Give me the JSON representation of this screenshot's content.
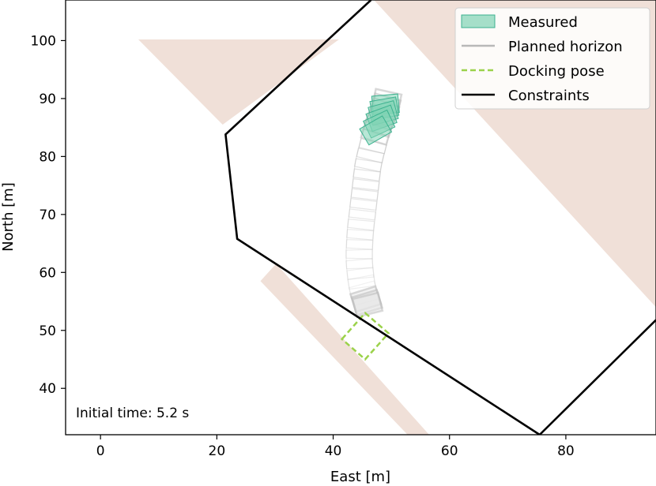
{
  "chart_data": {
    "type": "scatter",
    "xlabel": "East [m]",
    "ylabel": "North [m]",
    "xlim": [
      -6,
      95.5
    ],
    "ylim": [
      32,
      107
    ],
    "xticks": [
      0,
      20,
      40,
      60,
      80
    ],
    "yticks": [
      40,
      50,
      60,
      70,
      80,
      90,
      100
    ],
    "grid": false,
    "legend_position": "top-right",
    "annotation": "Initial time: 5.2 s",
    "colors": {
      "obstacle": "#f0e0d8",
      "constraint": "#000000",
      "measured_fill": "#7fd3b5",
      "measured_edge": "#3cb28f",
      "planned": "#b8b8b8",
      "docking": "#9bd24a"
    },
    "obstacles": [
      {
        "name": "quay-west",
        "points": [
          [
            6.5,
            100.2
          ],
          [
            41,
            100.2
          ],
          [
            21,
            85.5
          ]
        ]
      },
      {
        "name": "land-east",
        "points": [
          [
            47,
            107
          ],
          [
            95.5,
            107
          ],
          [
            95.5,
            54
          ]
        ]
      },
      {
        "name": "pier",
        "points": [
          [
            27.5,
            58.5
          ],
          [
            30.2,
            61.5
          ],
          [
            56.5,
            32
          ],
          [
            52.8,
            32
          ]
        ]
      }
    ],
    "constraints": [
      [
        46.5,
        107
      ],
      [
        21.5,
        83.8
      ],
      [
        23.5,
        65.8
      ],
      [
        75.5,
        32
      ],
      [
        95.5,
        51.8
      ]
    ],
    "docking_pose": {
      "corners": [
        [
          41.5,
          48.5
        ],
        [
          45.5,
          53.0
        ],
        [
          49.5,
          49.5
        ],
        [
          45.5,
          45.0
        ]
      ]
    },
    "measured": [
      {
        "x": 49.0,
        "y": 89.0,
        "heading": 5
      },
      {
        "x": 48.8,
        "y": 88.3,
        "heading": 10
      },
      {
        "x": 48.6,
        "y": 87.5,
        "heading": 15
      },
      {
        "x": 48.3,
        "y": 86.6,
        "heading": 20
      },
      {
        "x": 47.9,
        "y": 85.6,
        "heading": 25
      },
      {
        "x": 47.3,
        "y": 84.5,
        "heading": 30
      }
    ],
    "planned_horizon": [
      {
        "x": 49.2,
        "y": 89.6
      },
      {
        "x": 49.0,
        "y": 88.7
      },
      {
        "x": 48.7,
        "y": 87.8
      },
      {
        "x": 48.3,
        "y": 86.8
      },
      {
        "x": 47.9,
        "y": 85.6
      },
      {
        "x": 47.4,
        "y": 84.2
      },
      {
        "x": 47.0,
        "y": 82.6
      },
      {
        "x": 46.6,
        "y": 81.0
      },
      {
        "x": 46.2,
        "y": 79.4
      },
      {
        "x": 45.9,
        "y": 77.7
      },
      {
        "x": 45.7,
        "y": 76.0
      },
      {
        "x": 45.5,
        "y": 74.3
      },
      {
        "x": 45.3,
        "y": 72.6
      },
      {
        "x": 45.1,
        "y": 70.9
      },
      {
        "x": 44.9,
        "y": 69.1
      },
      {
        "x": 44.7,
        "y": 67.4
      },
      {
        "x": 44.6,
        "y": 65.7
      },
      {
        "x": 44.5,
        "y": 64.0
      },
      {
        "x": 44.5,
        "y": 62.3
      },
      {
        "x": 44.6,
        "y": 60.6
      },
      {
        "x": 44.8,
        "y": 59.0
      },
      {
        "x": 45.0,
        "y": 57.6
      },
      {
        "x": 45.3,
        "y": 56.4
      },
      {
        "x": 45.6,
        "y": 55.4
      },
      {
        "x": 45.8,
        "y": 54.8
      },
      {
        "x": 45.9,
        "y": 54.4
      }
    ],
    "legend": [
      {
        "label": "Measured",
        "style": "patch"
      },
      {
        "label": "Planned horizon",
        "style": "solid"
      },
      {
        "label": "Docking pose",
        "style": "dashed"
      },
      {
        "label": "Constraints",
        "style": "solid-black"
      }
    ]
  }
}
